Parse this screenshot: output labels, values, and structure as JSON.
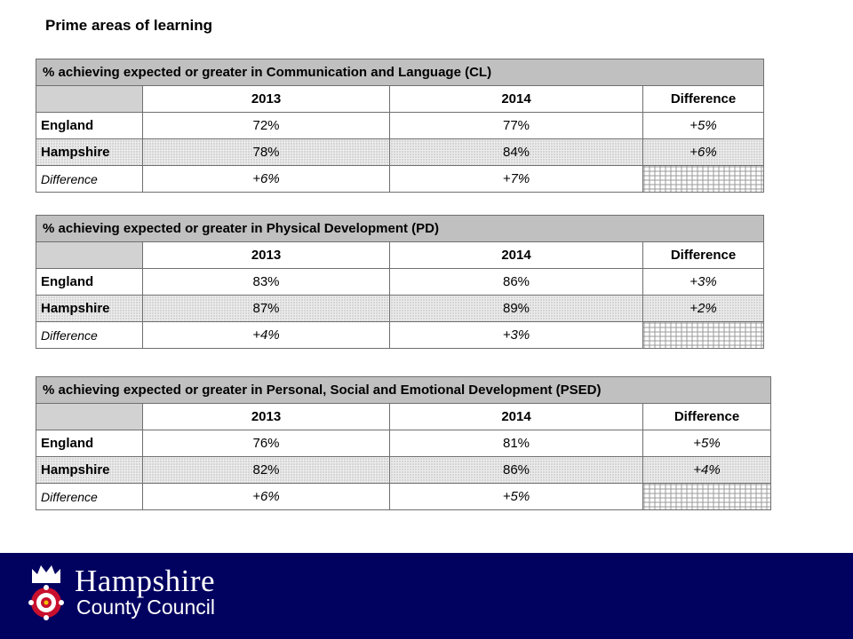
{
  "page": {
    "heading": "Prime areas of learning"
  },
  "tables": [
    {
      "title": "% achieving expected or greater in Communication and Language (CL)",
      "columns": [
        "2013",
        "2014",
        "Difference"
      ],
      "rows": [
        {
          "label": "England",
          "v2013": "72%",
          "v2014": "77%",
          "diff": "+5%"
        },
        {
          "label": "Hampshire",
          "v2013": "78%",
          "v2014": "84%",
          "diff": "+6%"
        },
        {
          "label": "Difference",
          "v2013": "+6%",
          "v2014": "+7%"
        }
      ]
    },
    {
      "title": "% achieving expected or greater in Physical Development (PD)",
      "columns": [
        "2013",
        "2014",
        "Difference"
      ],
      "rows": [
        {
          "label": "England",
          "v2013": "83%",
          "v2014": "86%",
          "diff": "+3%"
        },
        {
          "label": "Hampshire",
          "v2013": "87%",
          "v2014": "89%",
          "diff": "+2%"
        },
        {
          "label": "Difference",
          "v2013": "+4%",
          "v2014": "+3%"
        }
      ]
    },
    {
      "title": "% achieving expected or greater in Personal, Social and Emotional Development (PSED)",
      "columns": [
        "2013",
        "2014",
        "Difference"
      ],
      "rows": [
        {
          "label": "England",
          "v2013": "76%",
          "v2014": "81%",
          "diff": "+5%"
        },
        {
          "label": "Hampshire",
          "v2013": "82%",
          "v2014": "86%",
          "diff": "+4%"
        },
        {
          "label": "Difference",
          "v2013": "+6%",
          "v2014": "+5%"
        }
      ]
    }
  ],
  "footer": {
    "brand_name": "Hampshire",
    "brand_sub": "County Council",
    "logo_icon": "hampshire-crest-icon",
    "colors": {
      "footer_bg": "#010160",
      "crest_rose_red": "#c8102e",
      "brand_text": "#ffffff"
    }
  }
}
